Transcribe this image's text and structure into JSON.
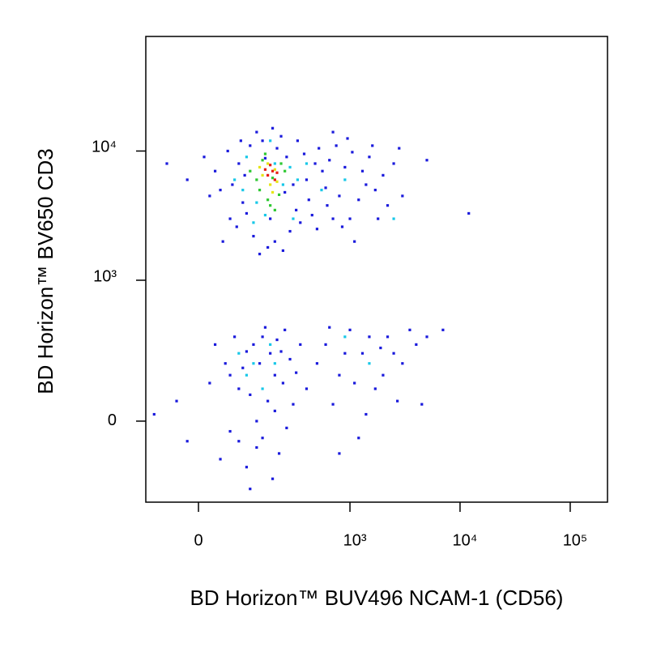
{
  "chart_data": {
    "type": "scatter",
    "x_label": "BD Horizon™ BUV496 NCAM-1 (CD56)",
    "y_label": "BD Horizon™ BV650 CD3",
    "xscale": "biexponential",
    "yscale": "biexponential",
    "xlim": [
      -113,
      218000
    ],
    "ylim": [
      -328,
      76600
    ],
    "xticks": [
      0,
      {
        "value": 1000,
        "label": "10³"
      },
      {
        "value": 10000,
        "label": "10⁴"
      },
      {
        "value": 100000,
        "label": "10⁵"
      }
    ],
    "yticks": [
      0,
      {
        "value": 1000,
        "label": "10³"
      },
      {
        "value": 10000,
        "label": "10⁴"
      }
    ],
    "series": [
      {
        "color": "#1a1adc",
        "x": [
          40,
          60,
          80,
          120,
          150,
          200,
          260,
          320,
          400,
          500,
          650,
          800,
          1000,
          1300,
          1700,
          2200,
          30,
          90,
          110,
          170,
          230,
          300,
          380,
          450,
          600,
          750,
          900,
          1100,
          1500,
          2000,
          55,
          75,
          95,
          130,
          180,
          240,
          350,
          520,
          700,
          950,
          1200,
          1800,
          20,
          10,
          -20,
          -60,
          2500,
          3000,
          5000,
          12000,
          65,
          85,
          140,
          210,
          280,
          420,
          560,
          850,
          1400,
          100,
          160,
          190,
          250,
          330,
          480,
          620,
          1050,
          45,
          700,
          1600,
          2800,
          50,
          80,
          120,
          150,
          200,
          250,
          300,
          100,
          70,
          180,
          130,
          220,
          60,
          160,
          90,
          280,
          20,
          -40,
          -90,
          110,
          140,
          190,
          240,
          350,
          40,
          170,
          210,
          100,
          60,
          130,
          260,
          320,
          30,
          200,
          150,
          80,
          230,
          400,
          -20,
          110,
          600,
          800,
          1000,
          1300,
          1700,
          2200,
          3000,
          4000,
          700,
          900,
          1200,
          1500,
          2000,
          2700,
          3500,
          500,
          650,
          1100,
          1900,
          5000,
          7000,
          1400,
          2500,
          800,
          4500
        ],
        "y": [
          5000,
          3000,
          8000,
          2200,
          12000,
          2000,
          9000,
          3500,
          6000,
          2500,
          8500,
          4500,
          3000,
          7000,
          5000,
          3800,
          7000,
          4000,
          11000,
          1800,
          13000,
          5500,
          9500,
          3200,
          5200,
          11000,
          7500,
          2000,
          9000,
          6500,
          10000,
          2600,
          6500,
          14000,
          3000,
          1700,
          2800,
          10500,
          3000,
          12500,
          4200,
          3000,
          4500,
          9000,
          6000,
          8000,
          8000,
          4500,
          8500,
          3300,
          5500,
          12000,
          1600,
          10500,
          2400,
          4200,
          7000,
          2600,
          5500,
          3300,
          8800,
          15000,
          4800,
          12000,
          8000,
          3800,
          9800,
          2000,
          14000,
          11000,
          10500,
          200,
          100,
          300,
          -50,
          150,
          400,
          50,
          -150,
          350,
          250,
          0,
          -100,
          -30,
          420,
          180,
          220,
          120,
          60,
          20,
          80,
          200,
          -200,
          120,
          300,
          -120,
          60,
          330,
          260,
          150,
          -80,
          -20,
          160,
          300,
          30,
          350,
          -60,
          260,
          100,
          -60,
          -250,
          300,
          150,
          400,
          250,
          100,
          350,
          200,
          300,
          50,
          250,
          -50,
          350,
          150,
          60,
          400,
          200,
          420,
          120,
          280,
          350,
          400,
          20,
          250,
          -100,
          50
        ]
      },
      {
        "color": "#18c8e8",
        "x": [
          70,
          100,
          130,
          160,
          200,
          240,
          280,
          120,
          330,
          400,
          550,
          900,
          2500,
          180,
          90,
          300,
          120,
          150,
          180,
          100,
          900,
          1500,
          200,
          80
        ],
        "y": [
          6000,
          9000,
          4000,
          3200,
          8000,
          5500,
          7500,
          2800,
          6000,
          8000,
          5000,
          6000,
          3000,
          12000,
          5000,
          3000,
          200,
          100,
          300,
          150,
          350,
          200,
          200,
          250
        ]
      },
      {
        "color": "#2ec832",
        "x": [
          110,
          140,
          150,
          170,
          190,
          220,
          250,
          130,
          200,
          160,
          230,
          180
        ],
        "y": [
          7000,
          5000,
          8500,
          4200,
          6200,
          4600,
          7000,
          6000,
          3500,
          9500,
          8000,
          3800
        ]
      },
      {
        "color": "#e6e614",
        "x": [
          150,
          180,
          200,
          170,
          210,
          140,
          190
        ],
        "y": [
          6500,
          5500,
          7200,
          8000,
          5800,
          7500,
          4800
        ]
      },
      {
        "color": "#e61e14",
        "x": [
          170,
          190,
          200,
          180,
          210,
          160
        ],
        "y": [
          6500,
          7000,
          6000,
          7800,
          6800,
          7200
        ]
      }
    ]
  }
}
